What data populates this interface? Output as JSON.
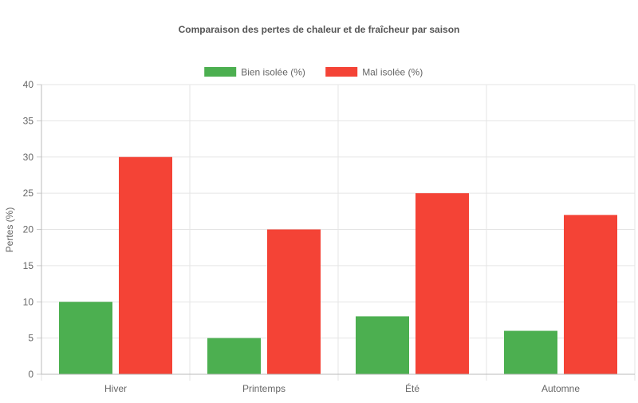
{
  "chart_data": {
    "type": "bar",
    "title": "Comparaison des pertes de chaleur et de fraîcheur par saison",
    "xlabel": "",
    "ylabel": "Pertes (%)",
    "categories": [
      "Hiver",
      "Printemps",
      "Été",
      "Automne"
    ],
    "ylim": [
      0,
      40
    ],
    "yticks": [
      0,
      5,
      10,
      15,
      20,
      25,
      30,
      35,
      40
    ],
    "grid": true,
    "legend_position": "top-center",
    "series": [
      {
        "name": "Bien isolée (%)",
        "color": "#4caf50",
        "values": [
          10,
          5,
          8,
          6
        ]
      },
      {
        "name": "Mal isolée (%)",
        "color": "#f44336",
        "values": [
          30,
          20,
          25,
          22
        ]
      }
    ]
  }
}
